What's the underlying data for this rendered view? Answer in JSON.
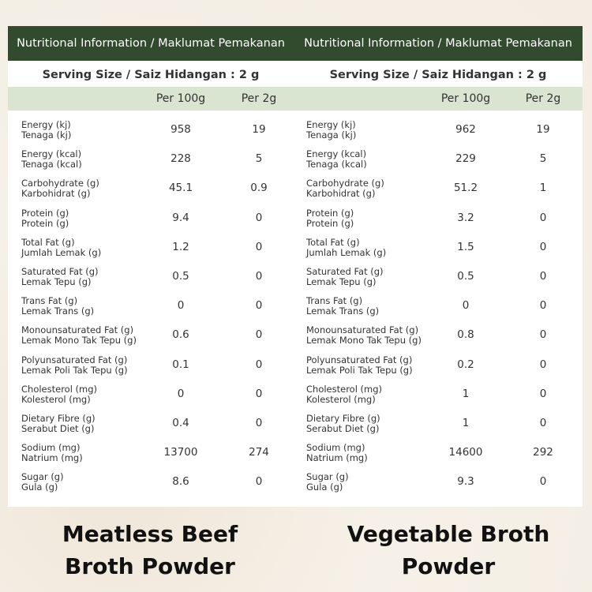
{
  "tables": [
    {
      "title": "Nutritional Information / Maklumat Pemakanan",
      "serving_size": "Serving Size / Saiz Hidangan : 2 g",
      "columns": [
        "Per 100g",
        "Per 2g"
      ],
      "rows": [
        {
          "name_en": "Energy (kj)",
          "name_ms": "Tenaga (kj)",
          "per_100g": 958,
          "per_2g": 19
        },
        {
          "name_en": "Energy (kcal)",
          "name_ms": "Tenaga (kcal)",
          "per_100g": 228,
          "per_2g": 5
        },
        {
          "name_en": "Carbohydrate (g)",
          "name_ms": "Karbohidrat (g)",
          "per_100g": 45.1,
          "per_2g": 0.9
        },
        {
          "name_en": "Protein (g)",
          "name_ms": "Protein (g)",
          "per_100g": 9.4,
          "per_2g": 0
        },
        {
          "name_en": "Total Fat (g)",
          "name_ms": "Jumlah Lemak (g)",
          "per_100g": 1.2,
          "per_2g": 0
        },
        {
          "name_en": "Saturated Fat (g)",
          "name_ms": "Lemak Tepu (g)",
          "per_100g": 0.5,
          "per_2g": 0
        },
        {
          "name_en": "Trans Fat (g)",
          "name_ms": "Lemak Trans (g)",
          "per_100g": 0,
          "per_2g": 0
        },
        {
          "name_en": "Monounsaturated Fat (g)",
          "name_ms": "Lemak Mono Tak Tepu (g)",
          "per_100g": 0.6,
          "per_2g": 0
        },
        {
          "name_en": "Polyunsaturated Fat (g)",
          "name_ms": "Lemak Poli Tak Tepu (g)",
          "per_100g": 0.1,
          "per_2g": 0
        },
        {
          "name_en": "Cholesterol (mg)",
          "name_ms": "Kolesterol (mg)",
          "per_100g": 0,
          "per_2g": 0
        },
        {
          "name_en": "Dietary Fibre (g)",
          "name_ms": "Serabut Diet (g)",
          "per_100g": 0.4,
          "per_2g": 0
        },
        {
          "name_en": "Sodium (mg)",
          "name_ms": "Natrium (mg)",
          "per_100g": 13700,
          "per_2g": 274
        },
        {
          "name_en": "Sugar (g)",
          "name_ms": "Gula (g)",
          "per_100g": 8.6,
          "per_2g": 0
        }
      ],
      "caption": [
        "Meatless Beef",
        "Broth Powder"
      ]
    },
    {
      "title": "Nutritional Information / Maklumat Pemakanan",
      "serving_size": "Serving Size / Saiz Hidangan : 2 g",
      "columns": [
        "Per 100g",
        "Per 2g"
      ],
      "rows": [
        {
          "name_en": "Energy (kj)",
          "name_ms": "Tenaga (kj)",
          "per_100g": 962,
          "per_2g": 19
        },
        {
          "name_en": "Energy (kcal)",
          "name_ms": "Tenaga (kcal)",
          "per_100g": 229,
          "per_2g": 5
        },
        {
          "name_en": "Carbohydrate (g)",
          "name_ms": "Karbohidrat (g)",
          "per_100g": 51.2,
          "per_2g": 1
        },
        {
          "name_en": "Protein (g)",
          "name_ms": "Protein (g)",
          "per_100g": 3.2,
          "per_2g": 0
        },
        {
          "name_en": "Total Fat (g)",
          "name_ms": "Jumlah Lemak (g)",
          "per_100g": 1.5,
          "per_2g": 0
        },
        {
          "name_en": "Saturated Fat (g)",
          "name_ms": "Lemak Tepu (g)",
          "per_100g": 0.5,
          "per_2g": 0
        },
        {
          "name_en": "Trans Fat (g)",
          "name_ms": "Lemak Trans (g)",
          "per_100g": 0,
          "per_2g": 0
        },
        {
          "name_en": "Monounsaturated Fat (g)",
          "name_ms": "Lemak Mono Tak Tepu (g)",
          "per_100g": 0.8,
          "per_2g": 0
        },
        {
          "name_en": "Polyunsaturated Fat (g)",
          "name_ms": "Lemak Poli Tak Tepu (g)",
          "per_100g": 0.2,
          "per_2g": 0
        },
        {
          "name_en": "Cholesterol (mg)",
          "name_ms": "Kolesterol (mg)",
          "per_100g": 1,
          "per_2g": 0
        },
        {
          "name_en": "Dietary Fibre (g)",
          "name_ms": "Serabut Diet (g)",
          "per_100g": 1,
          "per_2g": 0
        },
        {
          "name_en": "Sodium (mg)",
          "name_ms": "Natrium (mg)",
          "per_100g": 14600,
          "per_2g": 292
        },
        {
          "name_en": "Sugar (g)",
          "name_ms": "Gula (g)",
          "per_100g": 9.3,
          "per_2g": 0
        }
      ],
      "caption": [
        "Vegetable Broth",
        "Powder"
      ]
    }
  ]
}
